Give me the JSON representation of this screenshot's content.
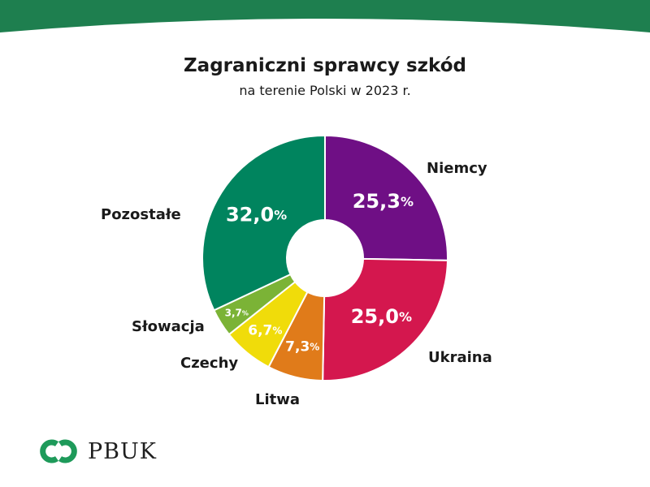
{
  "header": {
    "band_color": "#1e7f4f"
  },
  "chart_data": {
    "type": "pie",
    "title": "Zagraniczni sprawcy szkód",
    "subtitle": "na terenie Polski w 2023 r.",
    "categories": [
      "Niemcy",
      "Ukraina",
      "Litwa",
      "Czechy",
      "Słowacja",
      "Pozostałe"
    ],
    "values": [
      25.3,
      25.0,
      7.3,
      6.7,
      3.7,
      32.0
    ],
    "value_labels": [
      "25,3",
      "25,0",
      "7,3",
      "6,7",
      "3,7",
      "32,0"
    ],
    "unit": "%",
    "colors": [
      "#6f0f85",
      "#d4174e",
      "#e07b1a",
      "#f0dc0a",
      "#7bb336",
      "#00845e"
    ],
    "donut": true,
    "legend": "none"
  },
  "logo": {
    "text": "PBUK",
    "color": "#1e9a5a"
  }
}
